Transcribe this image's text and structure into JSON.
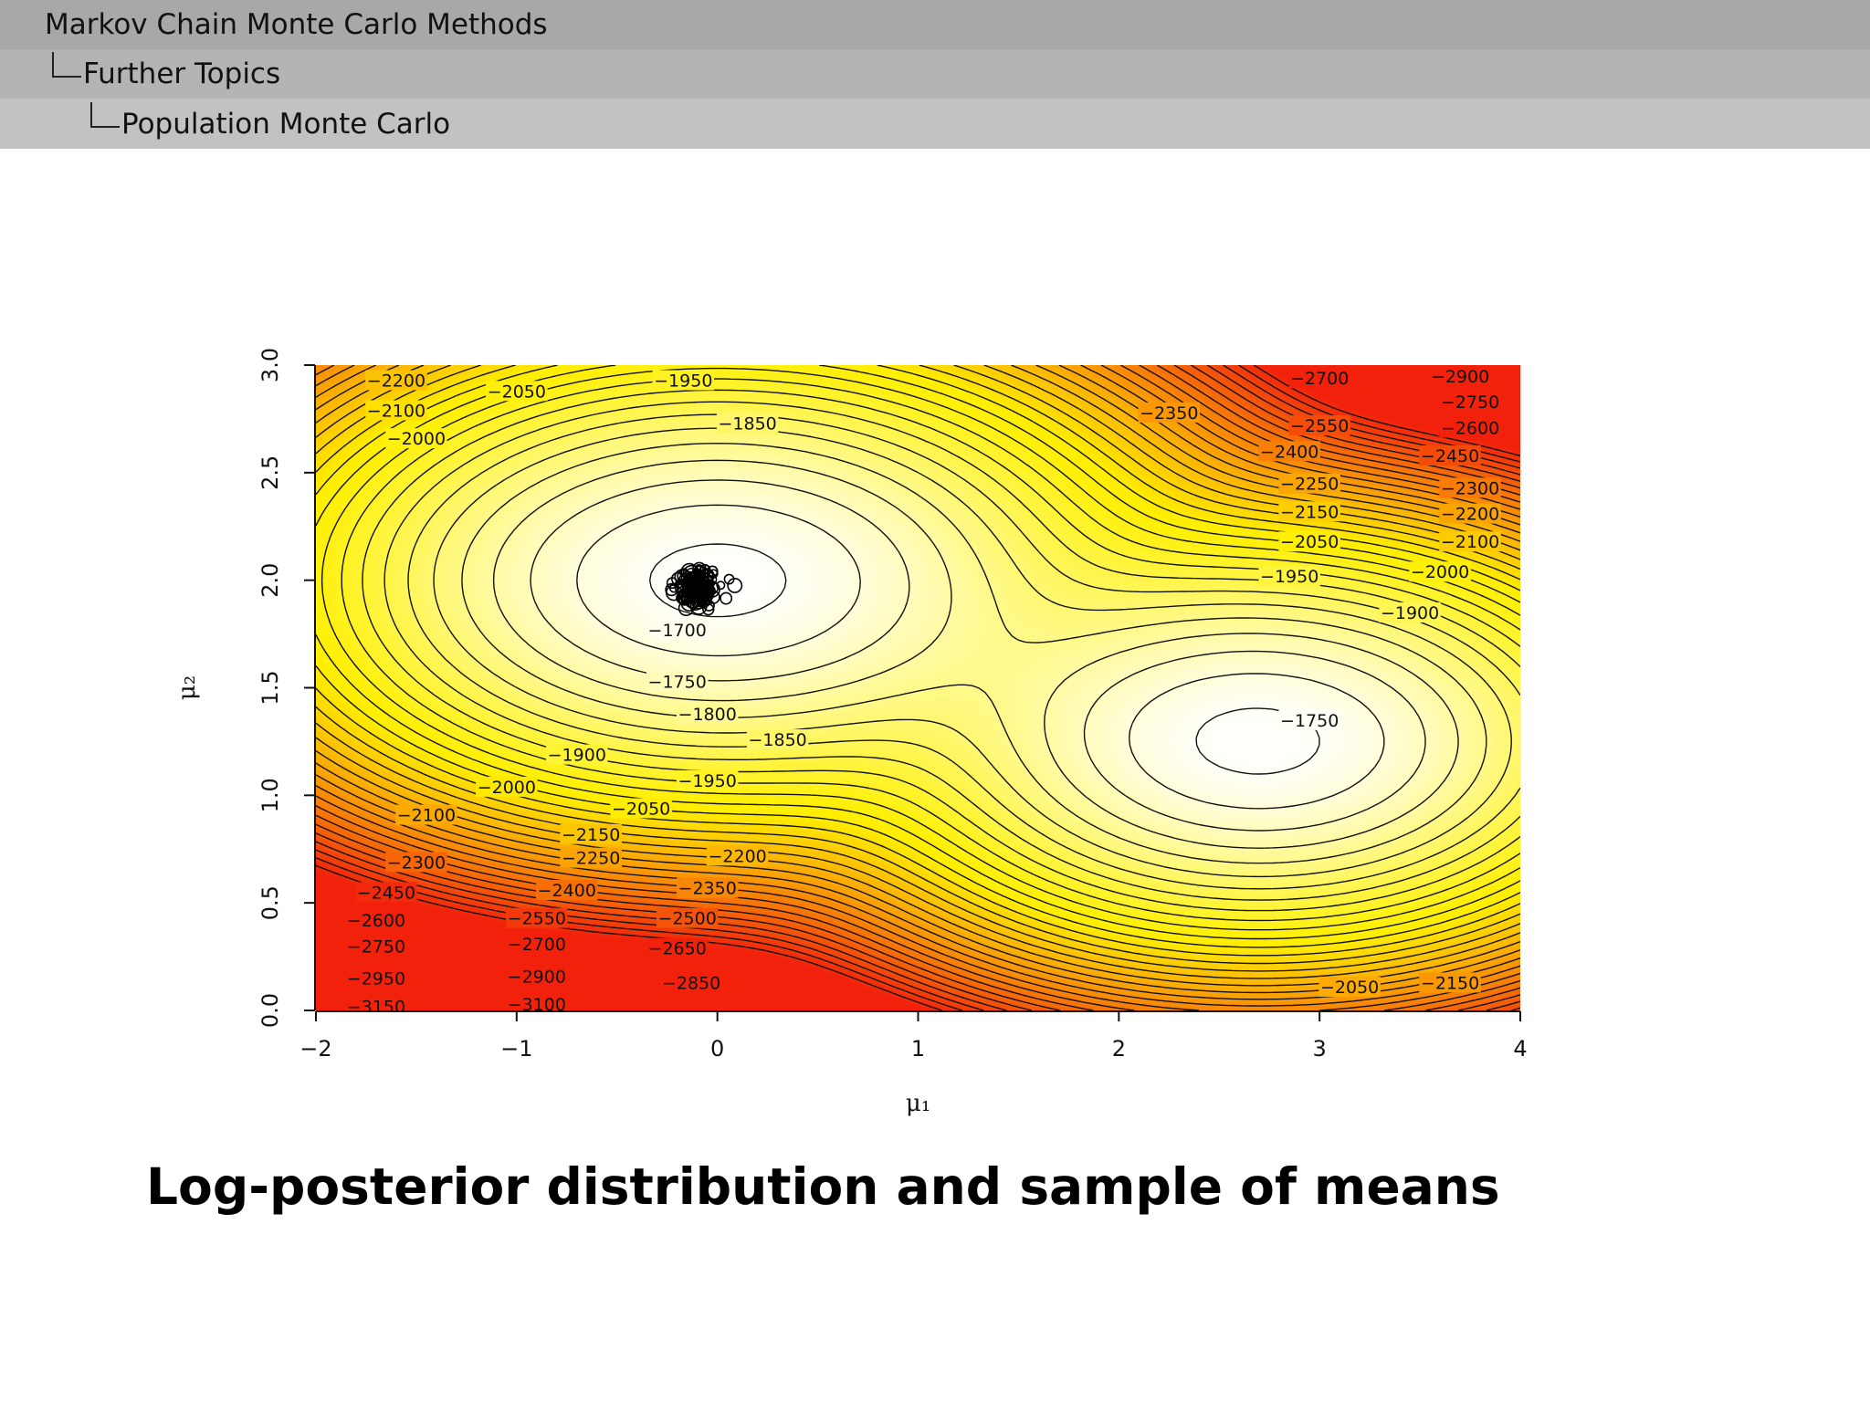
{
  "header": {
    "breadcrumb": [
      "Markov Chain Monte Carlo Methods",
      "Further Topics",
      "Population Monte Carlo"
    ]
  },
  "caption": "Log-posterior distribution and sample of means",
  "colors": {
    "low": "#f2210c",
    "mid": "#ffee00",
    "high": "#ffffff",
    "nav_bg": "#a8a8a8"
  },
  "chart_data": {
    "type": "heatmap",
    "title": "",
    "xlabel": "μ₁",
    "ylabel": "μ₂",
    "xlim": [
      -2,
      4
    ],
    "ylim": [
      0,
      3
    ],
    "x_ticks": [
      "−2",
      "−1",
      "0",
      "1",
      "2",
      "3",
      "4"
    ],
    "y_ticks": [
      "0.0",
      "0.5",
      "1.0",
      "1.5",
      "2.0",
      "2.5",
      "3.0"
    ],
    "modes": [
      {
        "mu1": 0,
        "mu2": 2.0,
        "log_posterior": -1700
      },
      {
        "mu1": 2.7,
        "mu2": 1.25,
        "log_posterior": -1750
      }
    ],
    "contour_labels": [
      {
        "text": "−2200",
        "mu1": -1.6,
        "mu2": 2.93
      },
      {
        "text": "−2100",
        "mu1": -1.6,
        "mu2": 2.79
      },
      {
        "text": "−2000",
        "mu1": -1.5,
        "mu2": 2.66
      },
      {
        "text": "−2050",
        "mu1": -1.0,
        "mu2": 2.88
      },
      {
        "text": "−1950",
        "mu1": -0.17,
        "mu2": 2.93
      },
      {
        "text": "−1850",
        "mu1": 0.15,
        "mu2": 2.73
      },
      {
        "text": "−1700",
        "mu1": -0.2,
        "mu2": 1.77
      },
      {
        "text": "−1750",
        "mu1": -0.2,
        "mu2": 1.53
      },
      {
        "text": "−1800",
        "mu1": -0.05,
        "mu2": 1.38
      },
      {
        "text": "−1850",
        "mu1": 0.3,
        "mu2": 1.26
      },
      {
        "text": "−1900",
        "mu1": -0.7,
        "mu2": 1.19
      },
      {
        "text": "−1950",
        "mu1": -0.05,
        "mu2": 1.07
      },
      {
        "text": "−2000",
        "mu1": -1.05,
        "mu2": 1.04
      },
      {
        "text": "−2050",
        "mu1": -0.38,
        "mu2": 0.94
      },
      {
        "text": "−2100",
        "mu1": -1.45,
        "mu2": 0.91
      },
      {
        "text": "−2150",
        "mu1": -0.63,
        "mu2": 0.82
      },
      {
        "text": "−2250",
        "mu1": -0.63,
        "mu2": 0.71
      },
      {
        "text": "−2200",
        "mu1": 0.1,
        "mu2": 0.72
      },
      {
        "text": "−2300",
        "mu1": -1.5,
        "mu2": 0.69
      },
      {
        "text": "−2450",
        "mu1": -1.65,
        "mu2": 0.55
      },
      {
        "text": "−2400",
        "mu1": -0.75,
        "mu2": 0.56
      },
      {
        "text": "−2350",
        "mu1": -0.05,
        "mu2": 0.57
      },
      {
        "text": "−2600",
        "mu1": -1.7,
        "mu2": 0.42
      },
      {
        "text": "−2550",
        "mu1": -0.9,
        "mu2": 0.43
      },
      {
        "text": "−2500",
        "mu1": -0.15,
        "mu2": 0.43
      },
      {
        "text": "−2750",
        "mu1": -1.7,
        "mu2": 0.3
      },
      {
        "text": "−2700",
        "mu1": -0.9,
        "mu2": 0.31
      },
      {
        "text": "−2650",
        "mu1": -0.2,
        "mu2": 0.29
      },
      {
        "text": "−2950",
        "mu1": -1.7,
        "mu2": 0.15
      },
      {
        "text": "−2900",
        "mu1": -0.9,
        "mu2": 0.16
      },
      {
        "text": "−2850",
        "mu1": -0.13,
        "mu2": 0.13
      },
      {
        "text": "−3150",
        "mu1": -1.7,
        "mu2": 0.02
      },
      {
        "text": "−3100",
        "mu1": -0.9,
        "mu2": 0.03
      },
      {
        "text": "−2350",
        "mu1": 2.25,
        "mu2": 2.78
      },
      {
        "text": "−2700",
        "mu1": 3.0,
        "mu2": 2.94
      },
      {
        "text": "−2900",
        "mu1": 3.7,
        "mu2": 2.95
      },
      {
        "text": "−2750",
        "mu1": 3.75,
        "mu2": 2.83
      },
      {
        "text": "−2550",
        "mu1": 3.0,
        "mu2": 2.72
      },
      {
        "text": "−2600",
        "mu1": 3.75,
        "mu2": 2.71
      },
      {
        "text": "−2400",
        "mu1": 2.85,
        "mu2": 2.6
      },
      {
        "text": "−2450",
        "mu1": 3.65,
        "mu2": 2.58
      },
      {
        "text": "−2250",
        "mu1": 2.95,
        "mu2": 2.45
      },
      {
        "text": "−2300",
        "mu1": 3.75,
        "mu2": 2.43
      },
      {
        "text": "−2150",
        "mu1": 2.95,
        "mu2": 2.32
      },
      {
        "text": "−2200",
        "mu1": 3.75,
        "mu2": 2.31
      },
      {
        "text": "−2050",
        "mu1": 2.95,
        "mu2": 2.18
      },
      {
        "text": "−2100",
        "mu1": 3.75,
        "mu2": 2.18
      },
      {
        "text": "−1950",
        "mu1": 2.85,
        "mu2": 2.02
      },
      {
        "text": "−2000",
        "mu1": 3.6,
        "mu2": 2.04
      },
      {
        "text": "−1900",
        "mu1": 3.45,
        "mu2": 1.85
      },
      {
        "text": "−1750",
        "mu1": 2.95,
        "mu2": 1.35
      },
      {
        "text": "−2050",
        "mu1": 3.15,
        "mu2": 0.11
      },
      {
        "text": "−2150",
        "mu1": 3.65,
        "mu2": 0.13
      }
    ],
    "sample_cluster": {
      "mu1_center": -0.1,
      "mu2_center": 1.96,
      "n_points": 140,
      "spread_mu1": 0.08,
      "spread_mu2": 0.05
    }
  }
}
